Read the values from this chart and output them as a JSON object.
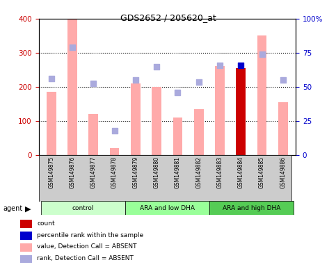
{
  "title": "GDS2652 / 205620_at",
  "samples": [
    "GSM149875",
    "GSM149876",
    "GSM149877",
    "GSM149878",
    "GSM149879",
    "GSM149880",
    "GSM149881",
    "GSM149882",
    "GSM149883",
    "GSM149884",
    "GSM149885",
    "GSM149886"
  ],
  "groups": [
    {
      "label": "control",
      "start": 0,
      "end": 4,
      "color": "#ccffcc"
    },
    {
      "label": "ARA and low DHA",
      "start": 4,
      "end": 8,
      "color": "#99ff99"
    },
    {
      "label": "ARA and high DHA",
      "start": 8,
      "end": 12,
      "color": "#55cc55"
    }
  ],
  "bar_values": [
    185,
    400,
    120,
    20,
    210,
    200,
    110,
    135,
    260,
    255,
    350,
    155
  ],
  "bar_colors": [
    "#ffaaaa",
    "#ffaaaa",
    "#ffaaaa",
    "#ffaaaa",
    "#ffaaaa",
    "#ffaaaa",
    "#ffaaaa",
    "#ffaaaa",
    "#ffaaaa",
    "#cc0000",
    "#ffaaaa",
    "#ffaaaa"
  ],
  "rank_dots": [
    225,
    315,
    210,
    70,
    220,
    258,
    183,
    213,
    262,
    263,
    296,
    220
  ],
  "rank_dot_colors": [
    "#aaaadd",
    "#aaaadd",
    "#aaaadd",
    "#aaaadd",
    "#aaaadd",
    "#aaaadd",
    "#aaaadd",
    "#aaaadd",
    "#aaaadd",
    "#0000cc",
    "#aaaadd",
    "#aaaadd"
  ],
  "ylim": [
    0,
    400
  ],
  "yticks": [
    0,
    100,
    200,
    300,
    400
  ],
  "ytick_right_labels": [
    "0",
    "25",
    "50",
    "75",
    "100%"
  ],
  "legend_colors": [
    "#cc0000",
    "#0000cc",
    "#ffaaaa",
    "#aaaadd"
  ],
  "legend_labels": [
    "count",
    "percentile rank within the sample",
    "value, Detection Call = ABSENT",
    "rank, Detection Call = ABSENT"
  ],
  "bar_width": 0.45,
  "dot_size": 40
}
